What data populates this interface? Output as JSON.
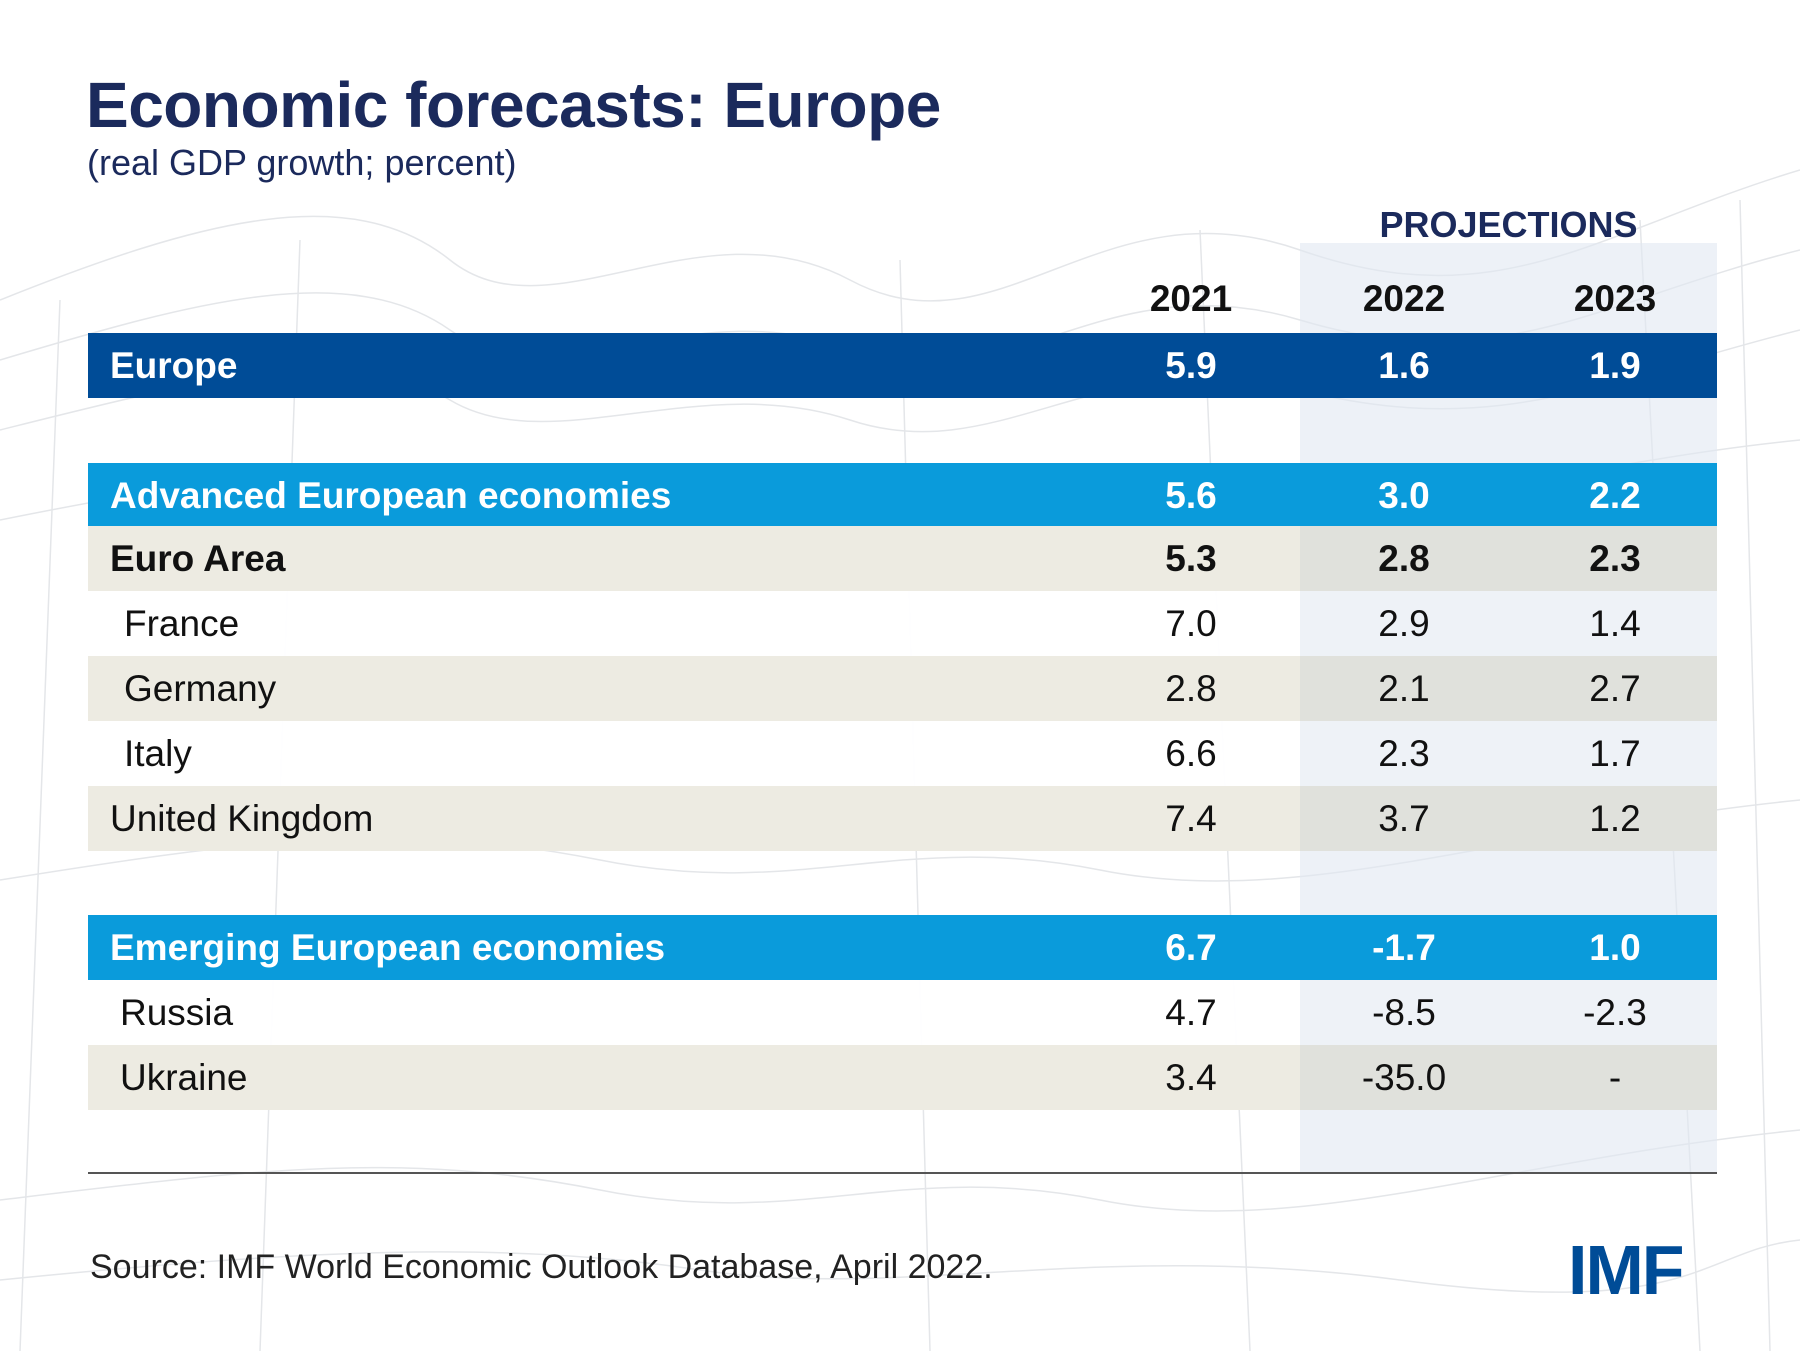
{
  "header": {
    "title": "Economic forecasts: Europe",
    "subtitle": "(real GDP growth; percent)"
  },
  "table": {
    "projections_label": "PROJECTIONS",
    "columns": [
      "2021",
      "2022",
      "2023"
    ],
    "rows": [
      {
        "label": "Europe",
        "values": [
          "5.9",
          "1.6",
          "1.9"
        ]
      },
      {
        "label": "Advanced European economies",
        "values": [
          "5.6",
          "3.0",
          "2.2"
        ]
      },
      {
        "label": "Euro Area",
        "values": [
          "5.3",
          "2.8",
          "2.3"
        ]
      },
      {
        "label": "France",
        "values": [
          "7.0",
          "2.9",
          "1.4"
        ]
      },
      {
        "label": "Germany",
        "values": [
          "2.8",
          "2.1",
          "2.7"
        ]
      },
      {
        "label": "Italy",
        "values": [
          "6.6",
          "2.3",
          "1.7"
        ]
      },
      {
        "label": "United Kingdom",
        "values": [
          "7.4",
          "3.7",
          "1.2"
        ]
      },
      {
        "label": "Emerging European economies",
        "values": [
          "6.7",
          "-1.7",
          "1.0"
        ]
      },
      {
        "label": "Russia",
        "values": [
          "4.7",
          "-8.5",
          "-2.3"
        ]
      },
      {
        "label": "Ukraine",
        "values": [
          "3.4",
          "-35.0",
          "-"
        ]
      }
    ]
  },
  "footer": {
    "source": "Source: IMF World Economic Outlook Database, April 2022.",
    "logo": "IMF"
  },
  "colors": {
    "title": "#1b2a5c",
    "europe_row": "#004c97",
    "group_row": "#0a9bdb",
    "beige_row": "#edebe2",
    "projection_shade": "#e1e8f2",
    "logo": "#004c97"
  }
}
